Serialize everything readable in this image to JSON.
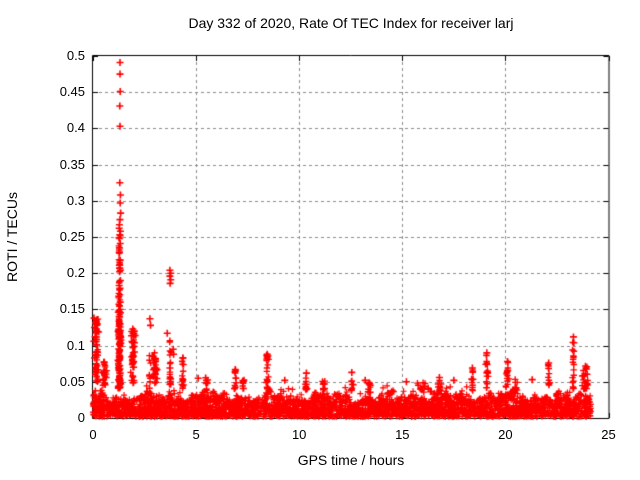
{
  "figure": {
    "background_color": "#ffffff",
    "frame_color": "#000000",
    "grid_color": "#8c8c8c",
    "text_color": "#000000"
  },
  "chart_data": {
    "type": "scatter",
    "title": "Day 332 of 2020, Rate Of TEC Index for receiver larj",
    "xlabel": "GPS time / hours",
    "ylabel": "ROTI / TECUs",
    "xlim": [
      0,
      25
    ],
    "ylim": [
      0,
      0.5
    ],
    "x_ticks": [
      {
        "v": 0,
        "label": "0"
      },
      {
        "v": 5,
        "label": "5"
      },
      {
        "v": 10,
        "label": "10"
      },
      {
        "v": 15,
        "label": "15"
      },
      {
        "v": 20,
        "label": "20"
      },
      {
        "v": 25,
        "label": "25"
      }
    ],
    "y_ticks": [
      {
        "v": 0,
        "label": "0"
      },
      {
        "v": 0.05,
        "label": "0.05"
      },
      {
        "v": 0.1,
        "label": "0.1"
      },
      {
        "v": 0.15,
        "label": "0.15"
      },
      {
        "v": 0.2,
        "label": "0.2"
      },
      {
        "v": 0.25,
        "label": "0.25"
      },
      {
        "v": 0.3,
        "label": "0.3"
      },
      {
        "v": 0.35,
        "label": "0.35"
      },
      {
        "v": 0.4,
        "label": "0.4"
      },
      {
        "v": 0.45,
        "label": "0.45"
      },
      {
        "v": 0.5,
        "label": "0.5"
      }
    ],
    "grid": {
      "on": true,
      "style": "dashed",
      "x_lines": [
        5,
        10,
        15,
        20
      ],
      "y_lines": [
        0.05,
        0.1,
        0.15,
        0.2,
        0.25,
        0.3,
        0.35,
        0.4,
        0.45
      ]
    },
    "legend": "none",
    "marker": {
      "shape": "plus",
      "color": "#ff0000",
      "size": 7
    },
    "series": [
      {
        "name": "ROTI",
        "x_range_hours": [
          0,
          24.2
        ],
        "outlier_points": [
          [
            1.31,
            0.491
          ],
          [
            1.31,
            0.475
          ],
          [
            1.32,
            0.451
          ],
          [
            1.3,
            0.431
          ],
          [
            1.31,
            0.403
          ],
          [
            1.3,
            0.325
          ],
          [
            1.33,
            0.308
          ],
          [
            1.32,
            0.297
          ],
          [
            1.34,
            0.283
          ],
          [
            1.31,
            0.274
          ],
          [
            1.28,
            0.267
          ],
          [
            1.27,
            0.262
          ],
          [
            1.33,
            0.258
          ],
          [
            1.3,
            0.253
          ],
          [
            1.26,
            0.249
          ],
          [
            1.32,
            0.241
          ],
          [
            1.28,
            0.235
          ],
          [
            1.27,
            0.229
          ],
          [
            1.32,
            0.218
          ],
          [
            1.28,
            0.211
          ],
          [
            1.3,
            0.207
          ],
          [
            1.33,
            0.204
          ],
          [
            1.29,
            0.202
          ],
          [
            1.33,
            0.19
          ],
          [
            1.27,
            0.183
          ],
          [
            1.31,
            0.179
          ],
          [
            1.25,
            0.168
          ],
          [
            1.32,
            0.16
          ],
          [
            1.23,
            0.146
          ],
          [
            1.27,
            0.14
          ],
          [
            0.05,
            0.138
          ],
          [
            0.12,
            0.131
          ],
          [
            0.07,
            0.125
          ],
          [
            0.16,
            0.119
          ],
          [
            0.1,
            0.112
          ],
          [
            0.04,
            0.106
          ],
          [
            0.18,
            0.101
          ],
          [
            0.22,
            0.091
          ],
          [
            0.08,
            0.083
          ],
          [
            1.93,
            0.123
          ],
          [
            2.0,
            0.12
          ],
          [
            1.97,
            0.117
          ],
          [
            2.76,
            0.137
          ],
          [
            2.79,
            0.128
          ],
          [
            3.6,
            0.117
          ],
          [
            3.73,
            0.204
          ],
          [
            3.77,
            0.2
          ],
          [
            3.73,
            0.196
          ],
          [
            3.77,
            0.191
          ],
          [
            3.74,
            0.186
          ],
          [
            3.89,
            0.095
          ],
          [
            3.91,
            0.088
          ],
          [
            3.73,
            0.069
          ],
          [
            4.36,
            0.083
          ],
          [
            6.9,
            0.067
          ],
          [
            8.45,
            0.088
          ],
          [
            10.35,
            0.062
          ],
          [
            12.55,
            0.063
          ],
          [
            16.8,
            0.056
          ],
          [
            18.4,
            0.069
          ],
          [
            19.1,
            0.09
          ],
          [
            20.1,
            0.078
          ],
          [
            22.1,
            0.076
          ],
          [
            23.3,
            0.112
          ],
          [
            23.32,
            0.104
          ],
          [
            0.55,
            0.077
          ],
          [
            5.1,
            0.055
          ],
          [
            9.3,
            0.052
          ],
          [
            13.2,
            0.052
          ],
          [
            15.2,
            0.05
          ],
          [
            17.5,
            0.052
          ],
          [
            21.3,
            0.053
          ]
        ],
        "spike_clusters": [
          {
            "x": 0.18,
            "sx": 0.1,
            "n": 50,
            "y0": 0.05,
            "y1": 0.14
          },
          {
            "x": 0.55,
            "sx": 0.12,
            "n": 25,
            "y0": 0.045,
            "y1": 0.078
          },
          {
            "x": 1.28,
            "sx": 0.09,
            "n": 150,
            "y0": 0.04,
            "y1": 0.155
          },
          {
            "x": 1.29,
            "sx": 0.05,
            "n": 22,
            "y0": 0.155,
            "y1": 0.255
          },
          {
            "x": 1.95,
            "sx": 0.13,
            "n": 45,
            "y0": 0.045,
            "y1": 0.122
          },
          {
            "x": 2.75,
            "sx": 0.05,
            "n": 8,
            "y0": 0.04,
            "y1": 0.09
          },
          {
            "x": 3.0,
            "sx": 0.12,
            "n": 30,
            "y0": 0.045,
            "y1": 0.094
          },
          {
            "x": 3.75,
            "sx": 0.05,
            "n": 18,
            "y0": 0.045,
            "y1": 0.12
          },
          {
            "x": 4.35,
            "sx": 0.06,
            "n": 16,
            "y0": 0.04,
            "y1": 0.083
          },
          {
            "x": 5.5,
            "sx": 0.1,
            "n": 12,
            "y0": 0.035,
            "y1": 0.056
          },
          {
            "x": 6.9,
            "sx": 0.07,
            "n": 14,
            "y0": 0.04,
            "y1": 0.066
          },
          {
            "x": 7.3,
            "sx": 0.06,
            "n": 10,
            "y0": 0.04,
            "y1": 0.058
          },
          {
            "x": 8.45,
            "sx": 0.08,
            "n": 22,
            "y0": 0.04,
            "y1": 0.088
          },
          {
            "x": 10.35,
            "sx": 0.08,
            "n": 14,
            "y0": 0.038,
            "y1": 0.062
          },
          {
            "x": 11.2,
            "sx": 0.1,
            "n": 10,
            "y0": 0.035,
            "y1": 0.054
          },
          {
            "x": 12.55,
            "sx": 0.08,
            "n": 14,
            "y0": 0.038,
            "y1": 0.063
          },
          {
            "x": 13.4,
            "sx": 0.1,
            "n": 10,
            "y0": 0.035,
            "y1": 0.054
          },
          {
            "x": 16.0,
            "sx": 0.4,
            "n": 14,
            "y0": 0.035,
            "y1": 0.053
          },
          {
            "x": 16.8,
            "sx": 0.1,
            "n": 10,
            "y0": 0.035,
            "y1": 0.055
          },
          {
            "x": 18.4,
            "sx": 0.07,
            "n": 12,
            "y0": 0.038,
            "y1": 0.068
          },
          {
            "x": 19.1,
            "sx": 0.09,
            "n": 20,
            "y0": 0.04,
            "y1": 0.088
          },
          {
            "x": 20.1,
            "sx": 0.08,
            "n": 16,
            "y0": 0.04,
            "y1": 0.077
          },
          {
            "x": 20.5,
            "sx": 0.1,
            "n": 10,
            "y0": 0.038,
            "y1": 0.058
          },
          {
            "x": 22.1,
            "sx": 0.08,
            "n": 12,
            "y0": 0.038,
            "y1": 0.074
          },
          {
            "x": 23.3,
            "sx": 0.06,
            "n": 16,
            "y0": 0.04,
            "y1": 0.11
          },
          {
            "x": 23.85,
            "sx": 0.15,
            "n": 30,
            "y0": 0.04,
            "y1": 0.073
          }
        ],
        "baseline_band": {
          "n": 3600,
          "x_min": 0,
          "x_max": 24.15,
          "y_floor": 0.0015,
          "y_top_base": 0.031,
          "density_pow": 1.3,
          "stray_chance": 0.04,
          "stray_mult": 1.35,
          "modulation": [
            [
              0.12,
              2.2,
              1.3
            ],
            [
              0.1,
              5.3,
              0.4
            ],
            [
              0.08,
              11.7,
              2.0
            ],
            [
              0.06,
              23.0,
              5.0
            ]
          ],
          "seed": 1332
        }
      }
    ]
  }
}
